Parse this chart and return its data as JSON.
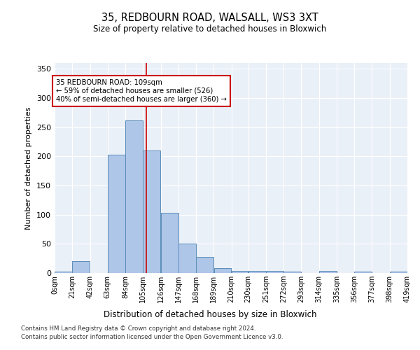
{
  "title1": "35, REDBOURN ROAD, WALSALL, WS3 3XT",
  "title2": "Size of property relative to detached houses in Bloxwich",
  "xlabel": "Distribution of detached houses by size in Bloxwich",
  "ylabel": "Number of detached properties",
  "bin_edges": [
    0,
    21,
    42,
    63,
    84,
    105,
    126,
    147,
    168,
    189,
    210,
    230,
    251,
    272,
    293,
    314,
    335,
    356,
    377,
    398,
    419
  ],
  "bin_counts": [
    2,
    20,
    0,
    203,
    262,
    210,
    103,
    50,
    28,
    8,
    4,
    4,
    4,
    3,
    0,
    4,
    0,
    2,
    0,
    2
  ],
  "bar_color": "#aec6e8",
  "bar_edge_color": "#5b8db8",
  "vline_x": 109,
  "vline_color": "#cc0000",
  "annotation_text": "35 REDBOURN ROAD: 109sqm\n← 59% of detached houses are smaller (526)\n40% of semi-detached houses are larger (360) →",
  "annotation_box_color": "#ffffff",
  "annotation_box_edge": "#cc0000",
  "ylim": [
    0,
    360
  ],
  "yticks": [
    0,
    50,
    100,
    150,
    200,
    250,
    300,
    350
  ],
  "tick_labels": [
    "0sqm",
    "21sqm",
    "42sqm",
    "63sqm",
    "84sqm",
    "105sqm",
    "126sqm",
    "147sqm",
    "168sqm",
    "189sqm",
    "210sqm",
    "230sqm",
    "251sqm",
    "272sqm",
    "293sqm",
    "314sqm",
    "335sqm",
    "356sqm",
    "377sqm",
    "398sqm",
    "419sqm"
  ],
  "background_color": "#eaf0f8",
  "grid_color": "#ffffff",
  "footer1": "Contains HM Land Registry data © Crown copyright and database right 2024.",
  "footer2": "Contains public sector information licensed under the Open Government Licence v3.0."
}
